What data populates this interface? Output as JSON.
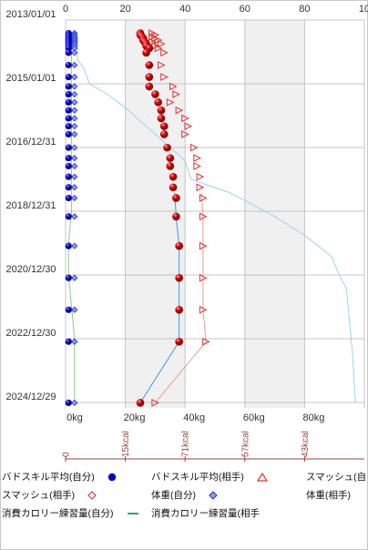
{
  "chart_data": {
    "type": "scatter",
    "y_axis": {
      "type": "date",
      "range": [
        "2013/01/01",
        "2025/03/01"
      ],
      "ticks": [
        "2013/01/01",
        "2015/01/01",
        "2016/12/31",
        "2018/12/31",
        "2020/12/30",
        "2022/12/30",
        "2024/12/29"
      ]
    },
    "x_axis_top": {
      "range": [
        0,
        100
      ],
      "ticks": [
        "0",
        "20",
        "40",
        "60",
        "80",
        "10"
      ]
    },
    "x_axis_bottom": {
      "range": [
        0,
        100
      ],
      "ticks": [
        "0kg",
        "20kg",
        "40kg",
        "60kg",
        "80kg"
      ]
    },
    "x_axis_calorie": {
      "ticks": [
        "0",
        "15kcal",
        "71kcal",
        "57kcal",
        "43kcal"
      ]
    },
    "shaded_bands": [
      [
        20,
        40
      ],
      [
        60,
        80
      ]
    ],
    "grid": true,
    "series": [
      {
        "name": "バドスキル平均(自分)",
        "color": "#0000cc",
        "marker": "circle",
        "points": [
          [
            "2013/06/01",
            1
          ],
          [
            "2013/06/20",
            1
          ],
          [
            "2013/07/10",
            1
          ],
          [
            "2013/08/01",
            1
          ],
          [
            "2013/08/20",
            1
          ],
          [
            "2013/09/10",
            1
          ],
          [
            "2013/10/01",
            1
          ],
          [
            "2013/10/25",
            1
          ],
          [
            "2013/11/20",
            1
          ],
          [
            "2014/01/10",
            1
          ],
          [
            "2014/06/01",
            1
          ],
          [
            "2014/10/15",
            1
          ],
          [
            "2015/02/01",
            1
          ],
          [
            "2015/05/01",
            1
          ],
          [
            "2015/08/01",
            1
          ],
          [
            "2015/11/01",
            1
          ],
          [
            "2016/02/01",
            1
          ],
          [
            "2016/05/01",
            1
          ],
          [
            "2016/08/01",
            1
          ],
          [
            "2017/01/01",
            1
          ],
          [
            "2017/05/01",
            1
          ],
          [
            "2017/08/01",
            1
          ],
          [
            "2017/12/01",
            1
          ],
          [
            "2018/04/01",
            1
          ],
          [
            "2018/08/01",
            1
          ],
          [
            "2019/03/01",
            1
          ],
          [
            "2020/02/01",
            1
          ],
          [
            "2021/02/01",
            1
          ],
          [
            "2022/02/01",
            1
          ],
          [
            "2023/02/01",
            1
          ],
          [
            "2025/01/01",
            1
          ]
        ]
      },
      {
        "name": "バドスキル平均(相手)",
        "color": "#2030d0",
        "marker": "diamond",
        "points": [
          [
            "2013/06/01",
            3
          ],
          [
            "2013/06/20",
            3
          ],
          [
            "2013/07/10",
            3
          ],
          [
            "2013/08/01",
            3
          ],
          [
            "2013/08/20",
            3
          ],
          [
            "2013/09/10",
            3
          ],
          [
            "2013/10/01",
            3
          ],
          [
            "2013/10/25",
            3
          ],
          [
            "2013/11/20",
            3
          ],
          [
            "2014/01/10",
            3
          ],
          [
            "2014/06/01",
            3
          ],
          [
            "2014/10/15",
            3
          ],
          [
            "2015/02/01",
            3
          ],
          [
            "2015/05/01",
            3
          ],
          [
            "2015/08/01",
            3
          ],
          [
            "2015/11/01",
            3
          ],
          [
            "2016/02/01",
            3
          ],
          [
            "2016/05/01",
            3
          ],
          [
            "2016/08/01",
            3
          ],
          [
            "2017/01/01",
            3
          ],
          [
            "2017/05/01",
            3
          ],
          [
            "2017/08/01",
            3
          ],
          [
            "2017/12/01",
            3
          ],
          [
            "2018/04/01",
            3
          ],
          [
            "2018/08/01",
            3
          ],
          [
            "2019/03/01",
            3
          ],
          [
            "2020/02/01",
            3
          ],
          [
            "2021/02/01",
            3
          ],
          [
            "2022/02/01",
            3
          ],
          [
            "2023/02/01",
            3
          ],
          [
            "2025/01/01",
            3
          ]
        ]
      },
      {
        "name": "スマッシュ(自分)",
        "color": "#cc0000",
        "marker": "ball",
        "points": [
          [
            "2013/06/01",
            25
          ],
          [
            "2013/06/20",
            25
          ],
          [
            "2013/07/10",
            25.5
          ],
          [
            "2013/08/01",
            26
          ],
          [
            "2013/08/20",
            26
          ],
          [
            "2013/09/10",
            26.5
          ],
          [
            "2013/10/01",
            27
          ],
          [
            "2013/10/25",
            27
          ],
          [
            "2013/11/20",
            28
          ],
          [
            "2014/01/10",
            27
          ],
          [
            "2014/06/01",
            28
          ],
          [
            "2014/10/15",
            28
          ],
          [
            "2015/02/01",
            28
          ],
          [
            "2015/05/01",
            30
          ],
          [
            "2015/08/01",
            31
          ],
          [
            "2015/11/01",
            32
          ],
          [
            "2016/02/01",
            32
          ],
          [
            "2016/05/01",
            33
          ],
          [
            "2016/08/01",
            33
          ],
          [
            "2017/01/01",
            34
          ],
          [
            "2017/05/01",
            35
          ],
          [
            "2017/08/01",
            35
          ],
          [
            "2017/12/01",
            36
          ],
          [
            "2018/04/01",
            36
          ],
          [
            "2018/08/01",
            37
          ],
          [
            "2019/03/01",
            37
          ],
          [
            "2020/02/01",
            38
          ],
          [
            "2021/02/01",
            38
          ],
          [
            "2022/02/01",
            38
          ],
          [
            "2023/02/01",
            38
          ],
          [
            "2025/01/01",
            25
          ]
        ]
      },
      {
        "name": "スマッシュ(相手)",
        "color": "#dd2222",
        "marker": "triangle",
        "points": [
          [
            "2013/06/01",
            29
          ],
          [
            "2013/06/20",
            30
          ],
          [
            "2013/07/10",
            29
          ],
          [
            "2013/08/01",
            30
          ],
          [
            "2013/08/20",
            31
          ],
          [
            "2013/09/10",
            29
          ],
          [
            "2013/10/01",
            32
          ],
          [
            "2013/10/25",
            30
          ],
          [
            "2013/11/20",
            31
          ],
          [
            "2014/01/10",
            33
          ],
          [
            "2014/06/01",
            32
          ],
          [
            "2014/10/15",
            33
          ],
          [
            "2015/02/01",
            36
          ],
          [
            "2015/05/01",
            37
          ],
          [
            "2015/08/01",
            35
          ],
          [
            "2015/11/01",
            38
          ],
          [
            "2016/02/01",
            40
          ],
          [
            "2016/05/01",
            41
          ],
          [
            "2016/08/01",
            40
          ],
          [
            "2017/01/01",
            43
          ],
          [
            "2017/05/01",
            44
          ],
          [
            "2017/08/01",
            44
          ],
          [
            "2017/12/01",
            45
          ],
          [
            "2018/04/01",
            45
          ],
          [
            "2018/08/01",
            46
          ],
          [
            "2019/03/01",
            46
          ],
          [
            "2020/02/01",
            46
          ],
          [
            "2021/02/01",
            46
          ],
          [
            "2022/02/01",
            46
          ],
          [
            "2023/02/01",
            47
          ],
          [
            "2025/01/01",
            30
          ]
        ]
      }
    ],
    "lines": [
      {
        "name": "体重(自分)",
        "color": "#4499ee",
        "points": [
          [
            "2018/06/01",
            36.5
          ],
          [
            "2019/03/01",
            37
          ],
          [
            "2020/02/01",
            38
          ],
          [
            "2021/02/01",
            38
          ],
          [
            "2022/02/01",
            38
          ],
          [
            "2023/02/01",
            38
          ],
          [
            "2025/01/01",
            25
          ]
        ]
      },
      {
        "name": "体重(相手)",
        "color": "#ee9999",
        "points": [
          [
            "2018/06/01",
            45.5
          ],
          [
            "2019/03/01",
            46
          ],
          [
            "2020/02/01",
            46
          ],
          [
            "2021/02/01",
            46
          ],
          [
            "2022/02/01",
            46
          ],
          [
            "2023/02/01",
            47
          ],
          [
            "2025/01/01",
            30
          ]
        ]
      },
      {
        "name": "消費カロリー練習量(自分)",
        "color": "#99d4ee",
        "points": [
          [
            "2013/07/01",
            4
          ],
          [
            "2014/04/01",
            4
          ],
          [
            "2014/07/01",
            6
          ],
          [
            "2015/01/01",
            8
          ],
          [
            "2015/05/01",
            14
          ],
          [
            "2015/10/01",
            20
          ],
          [
            "2016/03/01",
            25
          ],
          [
            "2016/08/01",
            30
          ],
          [
            "2017/01/01",
            35
          ],
          [
            "2017/06/01",
            40
          ],
          [
            "2018/01/01",
            42
          ],
          [
            "2018/06/01",
            55
          ],
          [
            "2019/03/01",
            70
          ],
          [
            "2019/10/01",
            80
          ],
          [
            "2020/06/01",
            89
          ],
          [
            "2021/02/01",
            92
          ],
          [
            "2021/06/01",
            94
          ],
          [
            "2022/06/01",
            95
          ],
          [
            "2023/06/01",
            96
          ],
          [
            "2025/01/01",
            97
          ]
        ]
      },
      {
        "name": "消費カロリー練習量(相手)",
        "color": "#88cc88",
        "points": [
          [
            "2013/07/01",
            2
          ],
          [
            "2014/01/01",
            2
          ],
          [
            "2019/01/01",
            2
          ],
          [
            "2020/01/01",
            1
          ],
          [
            "2021/01/01",
            1
          ],
          [
            "2022/01/01",
            2
          ],
          [
            "2023/01/01",
            3
          ],
          [
            "2025/01/01",
            3
          ]
        ]
      }
    ]
  },
  "legend": [
    {
      "label": "バドスキル平均(自分)",
      "marker": "circle",
      "color": "#0000cc"
    },
    {
      "label": "バドスキル平均(相手)",
      "marker": "triangle-open",
      "color": "#dd3333"
    },
    {
      "label": "スマッシュ(自",
      "marker": "none",
      "color": "#333333"
    },
    {
      "label": "スマッシュ(相手)",
      "marker": "diamond-open-red",
      "color": "#dd3333"
    },
    {
      "label": "体重(自分)",
      "marker": "diamond",
      "color": "#2030d0"
    },
    {
      "label": "体重(相手)",
      "marker": "none",
      "color": "#333333"
    },
    {
      "label": "消費カロリー練習量(自分)",
      "marker": "line",
      "color": "#22aa66"
    },
    {
      "label": "消費カロリー練習量(相手",
      "marker": "none",
      "color": "#333333"
    }
  ]
}
